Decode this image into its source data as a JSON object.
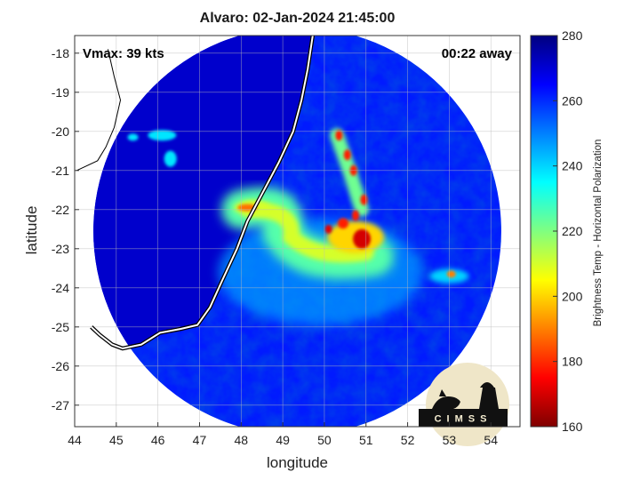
{
  "chart_data": {
    "type": "heatmap",
    "title": "Alvaro: 02-Jan-2024 21:45:00",
    "xlabel": "longitude",
    "ylabel": "latitude",
    "xlim": [
      44,
      54.7
    ],
    "ylim": [
      -27.55,
      -17.55
    ],
    "xticks": [
      44,
      45,
      46,
      47,
      48,
      49,
      50,
      51,
      52,
      53,
      54
    ],
    "yticks": [
      -18,
      -19,
      -20,
      -21,
      -22,
      -23,
      -24,
      -25,
      -26,
      -27
    ],
    "grid": true,
    "annotations": {
      "vmax": "Vmax: 39 kts",
      "away": "00:22 away"
    },
    "colorbar": {
      "label": "Brightness Temp - Horizontal Polarization",
      "min": 160,
      "max": 280,
      "ticks": [
        160,
        180,
        200,
        220,
        240,
        260,
        280
      ],
      "colormap": [
        "#7f0000",
        "#ff0000",
        "#ff8000",
        "#ffff00",
        "#80ff80",
        "#00ffff",
        "#0080ff",
        "#0000ff",
        "#00007f"
      ]
    },
    "scan": {
      "center": [
        49.35,
        -22.55
      ],
      "radius_deg": 4.9,
      "background_k": 262
    },
    "features": [
      {
        "name": "rain band arc",
        "lon": 49.2,
        "lat": -22.7,
        "tb": 210
      },
      {
        "name": "deep convection",
        "lon": 50.9,
        "lat": -22.7,
        "tb": 170
      },
      {
        "name": "convective band",
        "lon": 50.7,
        "lat": -21.5,
        "tb": 178
      },
      {
        "name": "northwest convection",
        "lon": 48.3,
        "lat": -21.95,
        "tb": 188
      },
      {
        "name": "east cell",
        "lon": 53.05,
        "lat": -23.65,
        "tb": 190
      },
      {
        "name": "madagascar land",
        "lon": 46.2,
        "lat": -20.4,
        "tb": 271
      }
    ],
    "coastline": [
      [
        49.72,
        -17.55
      ],
      [
        49.6,
        -18.4
      ],
      [
        49.45,
        -19.2
      ],
      [
        49.25,
        -20.0
      ],
      [
        48.9,
        -20.8
      ],
      [
        48.55,
        -21.5
      ],
      [
        48.15,
        -22.3
      ],
      [
        47.9,
        -23.0
      ],
      [
        47.55,
        -23.8
      ],
      [
        47.25,
        -24.5
      ],
      [
        46.95,
        -24.95
      ],
      [
        46.55,
        -25.05
      ],
      [
        46.05,
        -25.15
      ],
      [
        45.6,
        -25.45
      ],
      [
        45.15,
        -25.55
      ],
      [
        44.9,
        -25.45
      ],
      [
        44.6,
        -25.2
      ],
      [
        44.4,
        -25.0
      ]
    ],
    "map_outline": [
      [
        44.8,
        -17.9
      ],
      [
        44.95,
        -18.6
      ],
      [
        45.1,
        -19.2
      ],
      [
        44.95,
        -19.9
      ],
      [
        44.75,
        -20.4
      ],
      [
        44.55,
        -20.75
      ],
      [
        44.05,
        -21.0
      ]
    ],
    "logo": {
      "text": "CIMSS"
    }
  }
}
